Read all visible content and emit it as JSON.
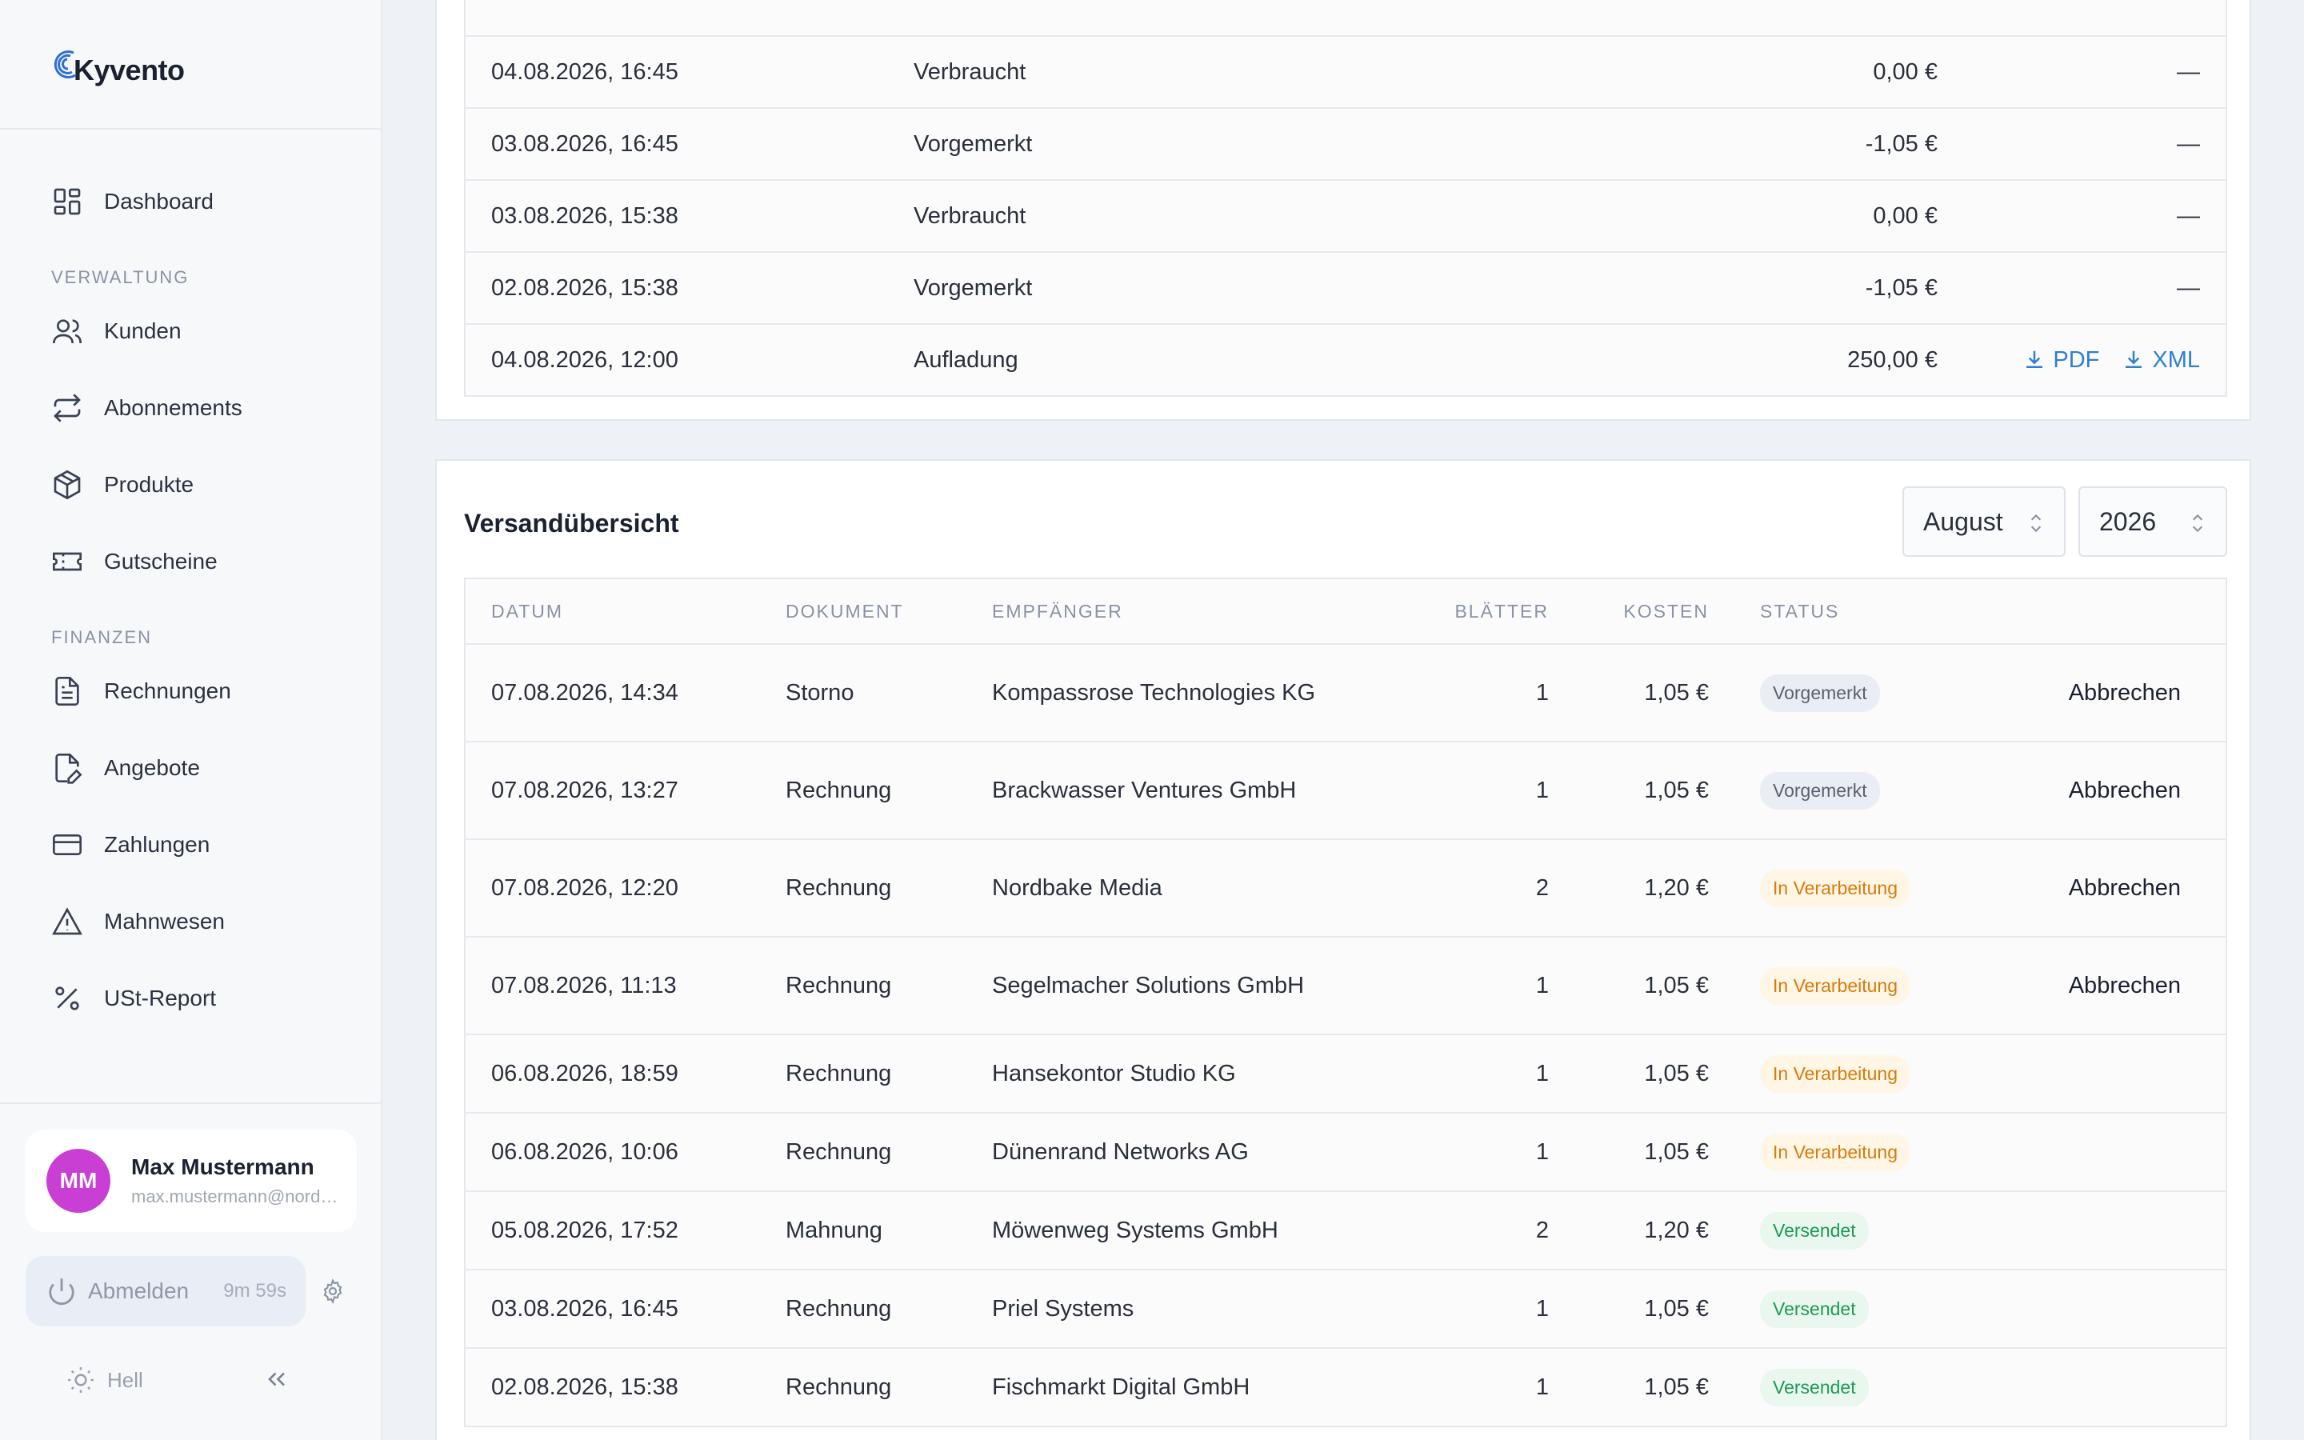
{
  "brand": {
    "name": "Kyvento"
  },
  "sidebar": {
    "dashboard": "Dashboard",
    "section_admin": "VERWALTUNG",
    "admin_items": [
      {
        "label": "Kunden",
        "icon": "users-icon"
      },
      {
        "label": "Abonnements",
        "icon": "repeat-icon"
      },
      {
        "label": "Produkte",
        "icon": "box-icon"
      },
      {
        "label": "Gutscheine",
        "icon": "ticket-icon"
      }
    ],
    "section_finance": "FINANZEN",
    "finance_items": [
      {
        "label": "Rechnungen",
        "icon": "file-text-icon"
      },
      {
        "label": "Angebote",
        "icon": "file-edit-icon"
      },
      {
        "label": "Zahlungen",
        "icon": "credit-card-icon"
      },
      {
        "label": "Mahnwesen",
        "icon": "alert-triangle-icon"
      },
      {
        "label": "USt-Report",
        "icon": "percent-icon"
      }
    ],
    "user": {
      "initials": "MM",
      "name": "Max Mustermann",
      "email": "max.mustermann@nordbake.de"
    },
    "logout": {
      "label": "Abmelden",
      "timer": "9m 59s"
    },
    "theme": {
      "label": "Hell"
    }
  },
  "transactions": {
    "rows": [
      {
        "date": "04.08.2026, 16:45",
        "type": "Verbraucht",
        "amount": "0,00 €",
        "action": "—"
      },
      {
        "date": "03.08.2026, 16:45",
        "type": "Vorgemerkt",
        "amount": "-1,05 €",
        "action": "—"
      },
      {
        "date": "03.08.2026, 15:38",
        "type": "Verbraucht",
        "amount": "0,00 €",
        "action": "—"
      },
      {
        "date": "02.08.2026, 15:38",
        "type": "Vorgemerkt",
        "amount": "-1,05 €",
        "action": "—"
      },
      {
        "date": "04.08.2026, 12:00",
        "type": "Aufladung",
        "amount": "250,00 €",
        "pdf": "PDF",
        "xml": "XML"
      }
    ]
  },
  "shipping": {
    "title": "Versandübersicht",
    "month": "August",
    "year": "2026",
    "columns": {
      "date": "DATUM",
      "doc": "DOKUMENT",
      "recipient": "EMPFÄNGER",
      "sheets": "BLÄTTER",
      "cost": "KOSTEN",
      "status": "STATUS"
    },
    "cancel_label": "Abbrechen",
    "rows": [
      {
        "date": "07.08.2026, 14:34",
        "doc": "Storno",
        "recipient": "Kompassrose Technologies KG",
        "sheets": "1",
        "cost": "1,05 €",
        "status": "Vorgemerkt",
        "tone": "gray",
        "cancel": true
      },
      {
        "date": "07.08.2026, 13:27",
        "doc": "Rechnung",
        "recipient": "Brackwasser Ventures GmbH",
        "sheets": "1",
        "cost": "1,05 €",
        "status": "Vorgemerkt",
        "tone": "gray",
        "cancel": true
      },
      {
        "date": "07.08.2026, 12:20",
        "doc": "Rechnung",
        "recipient": "Nordbake Media",
        "sheets": "2",
        "cost": "1,20 €",
        "status": "In Verarbeitung",
        "tone": "orange",
        "cancel": true
      },
      {
        "date": "07.08.2026, 11:13",
        "doc": "Rechnung",
        "recipient": "Segelmacher Solutions GmbH",
        "sheets": "1",
        "cost": "1,05 €",
        "status": "In Verarbeitung",
        "tone": "orange",
        "cancel": true
      },
      {
        "date": "06.08.2026, 18:59",
        "doc": "Rechnung",
        "recipient": "Hansekontor Studio KG",
        "sheets": "1",
        "cost": "1,05 €",
        "status": "In Verarbeitung",
        "tone": "orange",
        "cancel": false
      },
      {
        "date": "06.08.2026, 10:06",
        "doc": "Rechnung",
        "recipient": "Dünenrand Networks AG",
        "sheets": "1",
        "cost": "1,05 €",
        "status": "In Verarbeitung",
        "tone": "orange",
        "cancel": false
      },
      {
        "date": "05.08.2026, 17:52",
        "doc": "Mahnung",
        "recipient": "Möwenweg Systems GmbH",
        "sheets": "2",
        "cost": "1,20 €",
        "status": "Versendet",
        "tone": "green",
        "cancel": false
      },
      {
        "date": "03.08.2026, 16:45",
        "doc": "Rechnung",
        "recipient": "Priel Systems",
        "sheets": "1",
        "cost": "1,05 €",
        "status": "Versendet",
        "tone": "green",
        "cancel": false
      },
      {
        "date": "02.08.2026, 15:38",
        "doc": "Rechnung",
        "recipient": "Fischmarkt Digital GmbH",
        "sheets": "1",
        "cost": "1,05 €",
        "status": "Versendet",
        "tone": "green",
        "cancel": false
      }
    ]
  },
  "colors": {
    "accent": "#2f7fd1",
    "avatar": "#c93fd3"
  }
}
